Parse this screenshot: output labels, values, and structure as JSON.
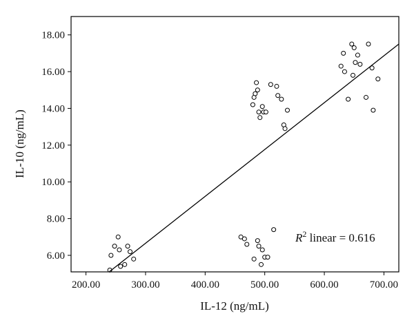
{
  "chart_data": {
    "type": "scatter",
    "xlabel": "IL-12 (ng/mL)",
    "ylabel": "IL-10 (ng/mL)",
    "xlim": [
      175,
      725
    ],
    "ylim": [
      5.1,
      19.0
    ],
    "x_ticks": [
      "200.00",
      "300.00",
      "400.00",
      "500.00",
      "600.00",
      "700.00"
    ],
    "y_ticks": [
      "6.00",
      "8.00",
      "10.00",
      "12.00",
      "14.00",
      "16.00",
      "18.00"
    ],
    "grid": false,
    "annotation": {
      "r_symbol": "R",
      "superscript": "2",
      "rest": " linear = 0.616"
    },
    "fit_line": {
      "x": [
        235,
        725
      ],
      "y": [
        5.0,
        17.5
      ]
    },
    "series": [
      {
        "marker": "open-circle",
        "x": [
          240,
          242,
          248,
          254,
          256,
          258,
          265,
          270,
          274,
          280,
          460,
          466,
          470,
          482,
          488,
          490,
          494,
          496,
          500,
          505,
          515,
          480,
          482,
          484,
          486,
          488,
          490,
          492,
          496,
          498,
          502,
          510,
          520,
          522,
          528,
          532,
          534,
          538,
          628,
          632,
          634,
          640,
          646,
          648,
          650,
          652,
          656,
          660,
          670,
          674,
          680,
          682,
          690
        ],
        "y": [
          5.2,
          6.0,
          6.5,
          7.0,
          6.3,
          5.4,
          5.5,
          6.5,
          6.2,
          5.8,
          7.0,
          6.9,
          6.6,
          5.8,
          6.8,
          6.5,
          5.5,
          6.3,
          5.9,
          5.9,
          7.4,
          14.2,
          14.6,
          14.8,
          15.4,
          15.0,
          13.8,
          13.5,
          14.1,
          13.8,
          13.8,
          15.3,
          15.2,
          14.7,
          14.5,
          13.1,
          12.9,
          13.9,
          16.3,
          17.0,
          16.0,
          14.5,
          17.5,
          15.8,
          17.3,
          16.5,
          16.9,
          16.4,
          14.6,
          17.5,
          16.2,
          13.9,
          15.6
        ]
      }
    ]
  }
}
